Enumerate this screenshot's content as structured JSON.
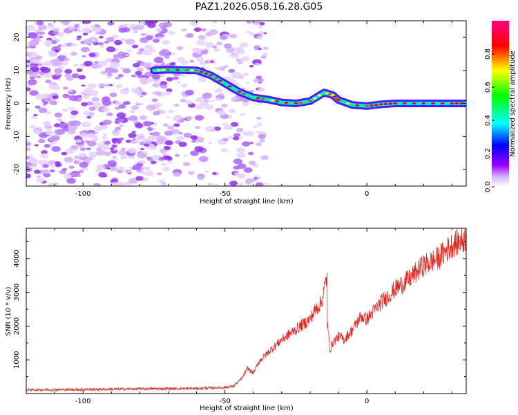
{
  "title": "PAZ1.2026.058.16.28.G05",
  "chart_data": [
    {
      "type": "heatmap",
      "xlabel": "Height of straight line (km)",
      "ylabel": "Frequency (Hz)",
      "xlim": [
        -120,
        35
      ],
      "ylim": [
        -25,
        25
      ],
      "xticks": [
        -100,
        -50,
        0
      ],
      "yticks": [
        -20,
        -10,
        0,
        10,
        20
      ],
      "colorbar": {
        "label": "Normalized spectral amplitude",
        "range": [
          0,
          1
        ],
        "ticks": [
          "0.0",
          "0.2",
          "0.4",
          "0.6",
          "0.8"
        ],
        "stops": [
          "#ffffff",
          "#9a00ff",
          "#0000ff",
          "#00ffff",
          "#00ff00",
          "#ffff00",
          "#ff0000",
          "#ff0080"
        ]
      },
      "signal_trace": {
        "height_km": [
          -75,
          -70,
          -65,
          -60,
          -55,
          -50,
          -45,
          -40,
          -35,
          -30,
          -25,
          -20,
          -15,
          -12,
          -10,
          -5,
          0,
          5,
          10,
          20,
          30,
          35
        ],
        "frequency_hz": [
          10,
          10.2,
          10.1,
          10,
          8.5,
          6,
          3.5,
          1.8,
          1.2,
          0.3,
          0,
          0.7,
          3.3,
          2.5,
          1,
          -0.5,
          -0.8,
          -0.3,
          0,
          0,
          0,
          0
        ]
      },
      "noise_region_km": [
        -120,
        -45
      ]
    },
    {
      "type": "line",
      "xlabel": "Height of straight line (km)",
      "ylabel": "SNR (10 * v/v)",
      "xlim": [
        -120,
        35
      ],
      "ylim": [
        0,
        4900
      ],
      "xticks": [
        -100,
        -50,
        0
      ],
      "yticks": [
        1000,
        2000,
        3000,
        4000
      ],
      "series": [
        {
          "name": "SNR",
          "color": "#e8261f",
          "x": [
            -120,
            -100,
            -80,
            -60,
            -50,
            -47,
            -44,
            -42,
            -40,
            -38,
            -35,
            -30,
            -25,
            -20,
            -18,
            -16,
            -14,
            -15,
            -13,
            -12,
            -10,
            -8,
            -5,
            -2,
            0,
            5,
            10,
            15,
            20,
            25,
            30,
            35
          ],
          "y": [
            110,
            120,
            140,
            150,
            180,
            220,
            450,
            750,
            600,
            950,
            1200,
            1600,
            1900,
            2200,
            2500,
            2700,
            3500,
            3000,
            1300,
            1500,
            1700,
            1600,
            1900,
            2300,
            2200,
            2700,
            3100,
            3400,
            3800,
            4000,
            4400,
            4600
          ]
        }
      ]
    }
  ]
}
